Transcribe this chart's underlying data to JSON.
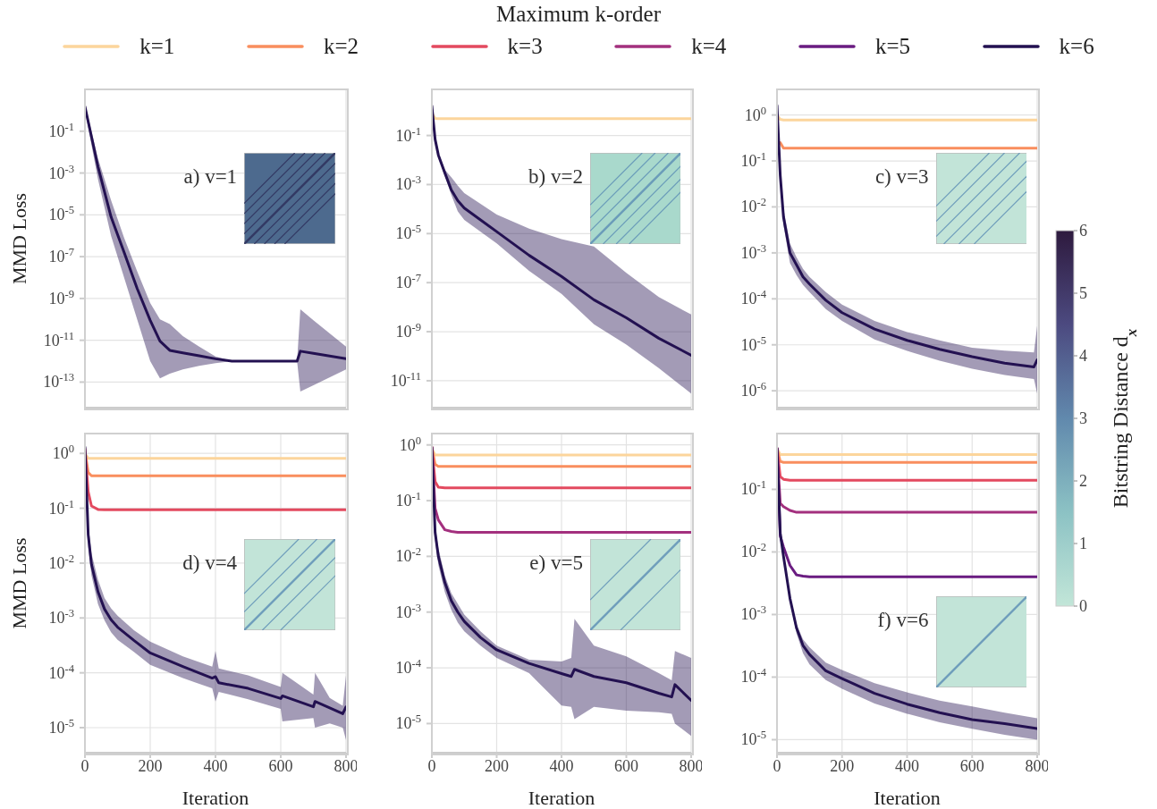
{
  "chart_data": [
    {
      "type": "line",
      "ylabel": "MMD Loss",
      "annotations": [
        "a) v=1"
      ],
      "log": true,
      "grid": true,
      "tick_labels": "y",
      "x": [
        0,
        40,
        80,
        120,
        160,
        200,
        230,
        260,
        300,
        350,
        400,
        450,
        650,
        660,
        700,
        800
      ],
      "xlim": [
        0,
        800
      ],
      "xticks": [
        0,
        200,
        400,
        600,
        800
      ],
      "ylim": [
        6e-15,
        10
      ],
      "yticks": [
        {
          "value": 0.1,
          "label": "10$^{-1}$"
        },
        {
          "value": 0.001,
          "label": "10$^{-3}$"
        },
        {
          "value": 1e-05,
          "label": "10$^{-5}$"
        },
        {
          "value": 1e-07,
          "label": "10$^{-7}$"
        },
        {
          "value": 1e-09,
          "label": "10$^{-9}$"
        },
        {
          "value": 1e-11,
          "label": "10$^{-11}$"
        },
        {
          "value": 1e-13,
          "label": "10$^{-13}$"
        }
      ],
      "series": [
        {
          "color": "#231151",
          "values": [
            1.5,
            0.002,
            8e-06,
            1.6e-07,
            3e-09,
            9e-11,
            9e-12,
            3.3e-12,
            2.5e-12,
            1.8e-12,
            1.3e-12,
            1e-12,
            1e-12,
            3e-12,
            2.4e-12,
            1.3e-12
          ],
          "upper": [
            2,
            0.005,
            5e-05,
            8e-07,
            2e-08,
            6e-10,
            1e-10,
            6e-11,
            1.6e-11,
            5e-12,
            1.7e-12,
            1e-12,
            1e-12,
            3e-10,
            9e-11,
            5e-12
          ],
          "lower": [
            1,
            0.0005,
            1e-06,
            1e-08,
            1e-10,
            1e-12,
            1.5e-13,
            2.5e-13,
            4e-13,
            6e-13,
            8e-13,
            1e-12,
            1e-12,
            3.5e-14,
            7e-14,
            4e-13
          ]
        }
      ]
    },
    {
      "type": "line",
      "annotations": [
        "b) v=2"
      ],
      "log": true,
      "grid": true,
      "tick_labels": "y",
      "x": [
        0,
        10,
        20,
        40,
        60,
        80,
        100,
        200,
        300,
        400,
        500,
        600,
        700,
        800
      ],
      "xlim": [
        0,
        800
      ],
      "xticks": [
        0,
        200,
        400,
        600,
        800
      ],
      "ylim": [
        8e-13,
        7.6
      ],
      "yticks": [
        {
          "value": 0.1,
          "label": "10$^{-1}$"
        },
        {
          "value": 0.001,
          "label": "10$^{-3}$"
        },
        {
          "value": 1e-05,
          "label": "10$^{-5}$"
        },
        {
          "value": 1e-07,
          "label": "10$^{-7}$"
        },
        {
          "value": 1e-09,
          "label": "10$^{-9}$"
        },
        {
          "value": 1e-11,
          "label": "10$^{-11}$"
        }
      ],
      "series": [
        {
          "color": "#fcd59c",
          "values": [
            0.8,
            0.5,
            0.49,
            0.49,
            0.49,
            0.49,
            0.49,
            0.49,
            0.49,
            0.49,
            0.49,
            0.49,
            0.49,
            0.49
          ]
        },
        {
          "color": "#231151",
          "values": [
            1.6,
            0.07,
            0.016,
            0.003,
            0.0006,
            0.00022,
            0.00011,
            1.2e-05,
            1.3e-06,
            1.8e-07,
            2e-08,
            3.7e-09,
            5.4e-10,
            1.1e-10
          ],
          "upper": [
            1.6,
            0.08,
            0.02,
            0.004,
            0.002,
            0.0009,
            0.00045,
            6e-05,
            1.6e-05,
            6e-06,
            3e-06,
            2.5e-07,
            2.6e-08,
            5e-09
          ],
          "lower": [
            1.6,
            0.06,
            0.013,
            0.0023,
            0.00038,
            8e-05,
            3.6e-05,
            4e-06,
            3e-07,
            3.5e-08,
            2e-09,
            3e-10,
            3.3e-11,
            3e-12
          ]
        }
      ]
    },
    {
      "type": "line",
      "annotations": [
        "c) v=3"
      ],
      "log": true,
      "grid": true,
      "tick_labels": "y",
      "clabel": "Bitstring Distance d$_{x}$",
      "clim": [
        0,
        6
      ],
      "cticks": [
        0,
        1,
        2,
        3,
        4,
        5,
        6
      ],
      "x": [
        0,
        10,
        20,
        40,
        60,
        80,
        100,
        150,
        200,
        300,
        400,
        500,
        600,
        700,
        790,
        800
      ],
      "xlim": [
        0,
        800
      ],
      "xticks": [
        0,
        200,
        400,
        600,
        800
      ],
      "ylim": [
        4.3e-07,
        3.6
      ],
      "yticks": [
        {
          "value": 1,
          "label": "10$^{0}$"
        },
        {
          "value": 0.1,
          "label": "10$^{-1}$"
        },
        {
          "value": 0.01,
          "label": "10$^{-2}$"
        },
        {
          "value": 0.001,
          "label": "10$^{-3}$"
        },
        {
          "value": 0.0001,
          "label": "10$^{-4}$"
        },
        {
          "value": 1e-05,
          "label": "10$^{-5}$"
        },
        {
          "value": 1e-06,
          "label": "10$^{-6}$"
        }
      ],
      "series": [
        {
          "color": "#fcd59c",
          "values": [
            1.0,
            0.8,
            0.78,
            0.78,
            0.78,
            0.78,
            0.78,
            0.78,
            0.78,
            0.78,
            0.78,
            0.78,
            0.78,
            0.78,
            0.78,
            0.78
          ]
        },
        {
          "color": "#f98e5e",
          "values": [
            null,
            0.25,
            0.19,
            0.19,
            0.19,
            0.19,
            0.19,
            0.19,
            0.19,
            0.19,
            0.19,
            0.19,
            0.19,
            0.19,
            0.19,
            0.19
          ]
        },
        {
          "color": "#231151",
          "values": [
            1.6,
            0.048,
            0.006,
            0.001,
            0.00055,
            0.0003,
            0.00021,
            9.3e-05,
            5e-05,
            2.2e-05,
            1.25e-05,
            8e-06,
            5.5e-06,
            4e-06,
            3.3e-06,
            4.7e-06
          ],
          "upper": [
            1.6,
            0.06,
            0.009,
            0.0016,
            0.0008,
            0.00045,
            0.0003,
            0.00014,
            7.5e-05,
            3.3e-05,
            1.9e-05,
            1.25e-05,
            8.6e-06,
            7.5e-06,
            6.8e-06,
            2.6e-05
          ],
          "lower": [
            1.6,
            0.04,
            0.004,
            0.0006,
            0.00033,
            0.0002,
            0.00014,
            6e-05,
            3.3e-05,
            1.3e-05,
            7.4e-06,
            4.5e-06,
            3e-06,
            2.2e-06,
            1.8e-06,
            8.7e-07
          ]
        }
      ]
    },
    {
      "type": "line",
      "xlabel": "Iteration",
      "ylabel": "MMD Loss",
      "annotations": [
        "d) v=4"
      ],
      "log": true,
      "grid": true,
      "x": [
        0,
        10,
        20,
        40,
        60,
        80,
        100,
        150,
        200,
        300,
        390,
        400,
        410,
        500,
        600,
        605,
        700,
        705,
        750,
        790,
        800
      ],
      "xlim": [
        0,
        800
      ],
      "xticks": [
        0,
        200,
        400,
        600,
        800
      ],
      "ylim": [
        3.5e-06,
        2.3
      ],
      "yticks": [
        {
          "value": 1,
          "label": "10$^{0}$"
        },
        {
          "value": 0.1,
          "label": "10$^{-1}$"
        },
        {
          "value": 0.01,
          "label": "10$^{-2}$"
        },
        {
          "value": 0.001,
          "label": "10$^{-3}$"
        },
        {
          "value": 0.0001,
          "label": "10$^{-4}$"
        },
        {
          "value": 1e-05,
          "label": "10$^{-5}$"
        }
      ],
      "series": [
        {
          "color": "#fcd59c",
          "values": [
            1.0,
            0.81,
            0.81,
            0.81,
            0.81,
            0.81,
            0.81,
            0.81,
            0.81,
            0.81,
            0.81,
            0.81,
            0.81,
            0.81,
            0.81,
            0.81,
            0.81,
            0.81,
            0.81,
            0.81,
            0.81
          ]
        },
        {
          "color": "#f98e5e",
          "values": [
            1.1,
            0.45,
            0.39,
            0.39,
            0.39,
            0.39,
            0.39,
            0.39,
            0.39,
            0.39,
            0.39,
            0.39,
            0.39,
            0.39,
            0.39,
            0.39,
            0.39,
            0.39,
            0.39,
            0.39,
            0.39
          ]
        },
        {
          "color": "#e34a5f",
          "values": [
            1.2,
            0.2,
            0.11,
            0.095,
            0.094,
            0.094,
            0.094,
            0.094,
            0.094,
            0.094,
            0.094,
            0.094,
            0.094,
            0.094,
            0.094,
            0.094,
            0.094,
            0.094,
            0.094,
            0.094,
            0.094
          ]
        },
        {
          "color": "#231151",
          "values": [
            1.3,
            0.033,
            0.0095,
            0.003,
            0.00145,
            0.00093,
            0.00068,
            0.00039,
            0.00023,
            0.00013,
            8e-05,
            8.5e-05,
            6.6e-05,
            5.2e-05,
            3.4e-05,
            3.8e-05,
            2.4e-05,
            3e-05,
            2.3e-05,
            1.8e-05,
            2.4e-05
          ],
          "upper": [
            1.3,
            0.05,
            0.015,
            0.005,
            0.0023,
            0.0015,
            0.0011,
            0.0006,
            0.00037,
            0.0002,
            0.00013,
            0.00025,
            0.00012,
            9e-05,
            5.5e-05,
            0.0001,
            4e-05,
            0.0001,
            3.5e-05,
            2.5e-05,
            9e-05
          ],
          "lower": [
            1.3,
            0.02,
            0.006,
            0.0018,
            0.0009,
            0.00055,
            0.0004,
            0.00024,
            0.00014,
            8e-05,
            5.2e-05,
            3e-05,
            4.5e-05,
            3.3e-05,
            2.2e-05,
            1.3e-05,
            1.5e-05,
            1e-05,
            1.2e-05,
            1e-05,
            6e-06
          ]
        }
      ]
    },
    {
      "type": "line",
      "xlabel": "Iteration",
      "annotations": [
        "e) v=5"
      ],
      "log": true,
      "grid": true,
      "x": [
        0,
        10,
        20,
        40,
        60,
        80,
        100,
        150,
        200,
        300,
        400,
        430,
        440,
        500,
        600,
        700,
        740,
        750,
        800
      ],
      "xlim": [
        0,
        800
      ],
      "xticks": [
        0,
        200,
        400,
        600,
        800
      ],
      "ylim": [
        3e-06,
        1.6
      ],
      "yticks": [
        {
          "value": 1,
          "label": "10$^{0}$"
        },
        {
          "value": 0.1,
          "label": "10$^{-1}$"
        },
        {
          "value": 0.01,
          "label": "10$^{-2}$"
        },
        {
          "value": 0.001,
          "label": "10$^{-3}$"
        },
        {
          "value": 0.0001,
          "label": "10$^{-4}$"
        },
        {
          "value": 1e-05,
          "label": "10$^{-5}$"
        }
      ],
      "series": [
        {
          "color": "#fcd59c",
          "values": [
            0.85,
            0.66,
            0.66,
            0.66,
            0.66,
            0.66,
            0.66,
            0.66,
            0.66,
            0.66,
            0.66,
            0.66,
            0.66,
            0.66,
            0.66,
            0.66,
            0.66,
            0.66,
            0.66
          ]
        },
        {
          "color": "#f98e5e",
          "values": [
            0.9,
            0.45,
            0.41,
            0.41,
            0.41,
            0.41,
            0.41,
            0.41,
            0.41,
            0.41,
            0.41,
            0.41,
            0.41,
            0.41,
            0.41,
            0.41,
            0.41,
            0.41,
            0.41
          ]
        },
        {
          "color": "#e34a5f",
          "values": [
            0.9,
            0.22,
            0.175,
            0.17,
            0.17,
            0.17,
            0.17,
            0.17,
            0.17,
            0.17,
            0.17,
            0.17,
            0.17,
            0.17,
            0.17,
            0.17,
            0.17,
            0.17,
            0.17
          ]
        },
        {
          "color": "#a3307e",
          "values": [
            0.9,
            0.073,
            0.045,
            0.03,
            0.028,
            0.027,
            0.027,
            0.027,
            0.027,
            0.027,
            0.027,
            0.027,
            0.027,
            0.027,
            0.027,
            0.027,
            0.027,
            0.027,
            0.027
          ]
        },
        {
          "color": "#231151",
          "values": [
            0.9,
            0.027,
            0.01,
            0.0034,
            0.0016,
            0.001,
            0.00068,
            0.00035,
            0.00021,
            0.00012,
            7.9e-05,
            7e-05,
            9.4e-05,
            7e-05,
            5.4e-05,
            3.5e-05,
            3e-05,
            5e-05,
            2.6e-05
          ],
          "upper": [
            0.9,
            0.035,
            0.014,
            0.0045,
            0.0022,
            0.0014,
            0.0009,
            0.00045,
            0.00025,
            0.00014,
            0.00013,
            0.00015,
            0.00076,
            0.00025,
            0.00016,
            8e-05,
            6e-05,
            0.0002,
            0.00015
          ],
          "lower": [
            0.9,
            0.02,
            0.007,
            0.0023,
            0.0011,
            0.00065,
            0.00045,
            0.00025,
            0.00015,
            8e-05,
            2.1e-05,
            2e-05,
            1.2e-05,
            2e-05,
            1.7e-05,
            1.6e-05,
            1.5e-05,
            1e-05,
            6e-06
          ]
        }
      ]
    },
    {
      "type": "line",
      "xlabel": "Iteration",
      "annotations": [
        "f) v=6"
      ],
      "log": true,
      "grid": true,
      "legend": "top",
      "legend_title": "Maximum k-order",
      "x": [
        0,
        10,
        20,
        40,
        60,
        80,
        100,
        150,
        200,
        300,
        400,
        500,
        600,
        700,
        800
      ],
      "xlim": [
        0,
        800
      ],
      "xticks": [
        0,
        200,
        400,
        600,
        800
      ],
      "ylim": [
        6.2e-06,
        0.78
      ],
      "yticks": [
        {
          "value": 0.1,
          "label": "10$^{-1}$"
        },
        {
          "value": 0.01,
          "label": "10$^{-2}$"
        },
        {
          "value": 0.001,
          "label": "10$^{-3}$"
        },
        {
          "value": 0.0001,
          "label": "10$^{-4}$"
        },
        {
          "value": 1e-05,
          "label": "10$^{-5}$"
        }
      ],
      "series": [
        {
          "name": "k=1",
          "color": "#fcd59c",
          "values": [
            0.45,
            0.36,
            0.36,
            0.36,
            0.36,
            0.36,
            0.36,
            0.36,
            0.36,
            0.36,
            0.36,
            0.36,
            0.36,
            0.36,
            0.36
          ]
        },
        {
          "name": "k=2",
          "color": "#f98e5e",
          "values": [
            0.45,
            0.28,
            0.27,
            0.27,
            0.27,
            0.27,
            0.27,
            0.27,
            0.27,
            0.27,
            0.27,
            0.27,
            0.27,
            0.27,
            0.27
          ]
        },
        {
          "name": "k=3",
          "color": "#e34a5f",
          "values": [
            0.45,
            0.16,
            0.145,
            0.14,
            0.14,
            0.14,
            0.14,
            0.14,
            0.14,
            0.14,
            0.14,
            0.14,
            0.14,
            0.14,
            0.14
          ]
        },
        {
          "name": "k=4",
          "color": "#a3307e",
          "values": [
            0.45,
            0.06,
            0.053,
            0.046,
            0.043,
            0.043,
            0.043,
            0.043,
            0.043,
            0.043,
            0.043,
            0.043,
            0.043,
            0.043,
            0.043
          ]
        },
        {
          "name": "k=5",
          "color": "#6a1c81",
          "values": [
            0.45,
            0.018,
            0.012,
            0.0061,
            0.0043,
            0.0041,
            0.004,
            0.004,
            0.004,
            0.004,
            0.004,
            0.004,
            0.004,
            0.004,
            0.004
          ]
        },
        {
          "name": "k=6",
          "color": "#231151",
          "values": [
            0.45,
            0.02,
            0.0085,
            0.0018,
            0.00061,
            0.00032,
            0.00023,
            0.000126,
            9.5e-05,
            5.5e-05,
            3.7e-05,
            2.7e-05,
            2.1e-05,
            1.8e-05,
            1.5e-05
          ],
          "upper": [
            0.45,
            0.022,
            0.0095,
            0.002,
            0.0007,
            0.0004,
            0.0003,
            0.00017,
            0.00013,
            8e-05,
            5.7e-05,
            4.2e-05,
            3.4e-05,
            2.7e-05,
            2.2e-05
          ],
          "lower": [
            0.45,
            0.018,
            0.0075,
            0.0016,
            0.0005,
            0.00024,
            0.00016,
            9e-05,
            6.5e-05,
            3.8e-05,
            2.6e-05,
            1.9e-05,
            1.5e-05,
            1.2e-05,
            1e-05
          ]
        }
      ]
    }
  ]
}
